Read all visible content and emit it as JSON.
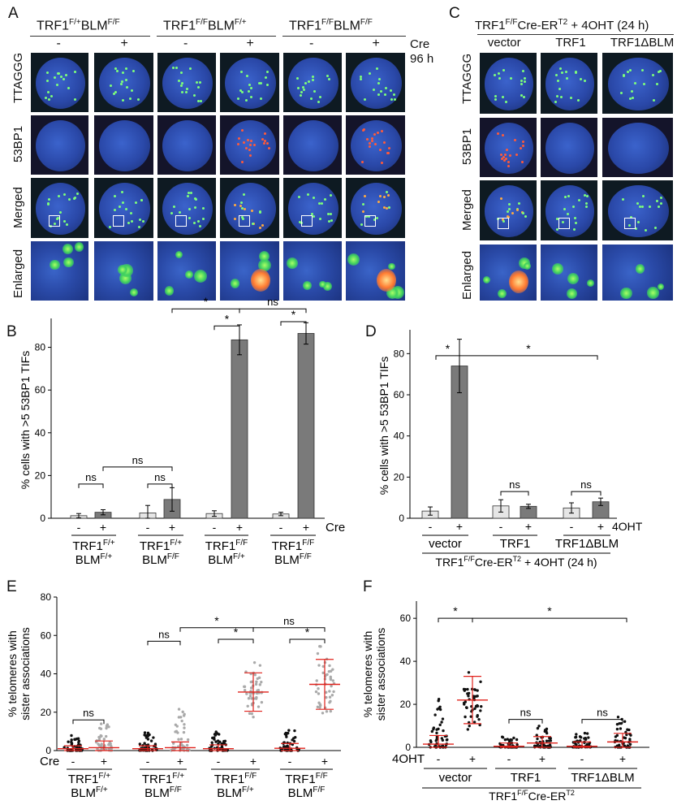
{
  "panelA": {
    "letter": "A",
    "groups": [
      "TRF1F/+BLMF/F",
      "TRF1F/FBLMF/+",
      "TRF1F/FBLMF/F"
    ],
    "group_parts": [
      [
        "TRF1",
        "F/+",
        "BLM",
        "F/F"
      ],
      [
        "TRF1",
        "F/F",
        "BLM",
        "F/+"
      ],
      [
        "TRF1",
        "F/F",
        "BLM",
        "F/F"
      ]
    ],
    "signs": [
      "-",
      "+",
      "-",
      "+",
      "-",
      "+"
    ],
    "cre": "Cre",
    "cre_time": "96 h",
    "rows": [
      "TTAGGG",
      "53BP1",
      "Merged",
      "Enlarged"
    ]
  },
  "panelC": {
    "letter": "C",
    "header_parts": [
      "TRF1",
      "F/F",
      "Cre-ER",
      "T2",
      "+ 4OHT (24 h)"
    ],
    "columns": [
      "vector",
      "TRF1",
      "TRF1ΔBLM"
    ],
    "rows": [
      "TTAGGG",
      "53BP1",
      "Merged",
      "Enlarged"
    ]
  },
  "panelB": {
    "letter": "B",
    "ylabel": "% cells with >5 53BP1 TIFs",
    "signs": [
      "-",
      "+",
      "-",
      "+",
      "-",
      "+",
      "-",
      "+"
    ],
    "cre": "Cre",
    "groups": [
      [
        "TRF1",
        "F/+",
        "BLM",
        "F/+"
      ],
      [
        "TRF1",
        "F/+",
        "BLM",
        "F/F"
      ],
      [
        "TRF1",
        "F/F",
        "BLM",
        "F/+"
      ],
      [
        "TRF1",
        "F/F",
        "BLM",
        "F/F"
      ]
    ],
    "sig": [
      "ns",
      "ns",
      "ns",
      "*",
      "*",
      "ns",
      "*"
    ]
  },
  "panelD": {
    "letter": "D",
    "ylabel": "% cells with >5 53BP1 TIFs",
    "signs": [
      "-",
      "+",
      "-",
      "+",
      "-",
      "+"
    ],
    "treat": "4OHT",
    "groups": [
      "vector",
      "TRF1",
      "TRF1ΔBLM"
    ],
    "footer_parts": [
      "TRF1",
      "F/F",
      "Cre-ER",
      "T2",
      "+ 4OHT (24 h)"
    ],
    "sig": [
      "*",
      "*",
      "ns",
      "ns"
    ]
  },
  "panelE": {
    "letter": "E",
    "ylabel": [
      "% telomeres with",
      "sister associations"
    ],
    "signs": [
      "-",
      "+",
      "-",
      "+",
      "-",
      "+",
      "-",
      "+"
    ],
    "cre": "Cre",
    "groups": [
      [
        "TRF1",
        "F/+",
        "BLM",
        "F/+"
      ],
      [
        "TRF1",
        "F/+",
        "BLM",
        "F/F"
      ],
      [
        "TRF1",
        "F/F",
        "BLM",
        "F/+"
      ],
      [
        "TRF1",
        "F/F",
        "BLM",
        "F/F"
      ]
    ],
    "sig": [
      "ns",
      "ns",
      "*",
      "ns",
      "*",
      "*"
    ]
  },
  "panelF": {
    "letter": "F",
    "ylabel": [
      "% telomeres with",
      "sister associations"
    ],
    "signs": [
      "-",
      "+",
      "-",
      "+",
      "-",
      "+"
    ],
    "treat": "4OHT",
    "groups": [
      "vector",
      "TRF1",
      "TRF1ΔBLM"
    ],
    "footer_parts": [
      "TRF1",
      "F/F",
      "Cre-ER",
      "T2"
    ],
    "sig": [
      "*",
      "*",
      "ns",
      "ns"
    ]
  },
  "colors": {
    "light_bar": "#e6e6e6",
    "dark_bar": "#7a7a7a",
    "red": "#e0201a",
    "nucleus": "#2b4fb8"
  },
  "chart_data": [
    {
      "type": "bar",
      "categories": [
        "TRF1F/+BLMF/+ -",
        "TRF1F/+BLMF/+ +",
        "TRF1F/+BLMF/F -",
        "TRF1F/+BLMF/F +",
        "TRF1F/FBLMF/+ -",
        "TRF1F/FBLMF/+ +",
        "TRF1F/FBLMF/F -",
        "TRF1F/FBLMF/F +"
      ],
      "values": [
        1.2,
        2.8,
        2.5,
        8.8,
        2.2,
        83.5,
        2.0,
        86.5
      ],
      "errors": [
        1.0,
        1.2,
        3.5,
        5.5,
        1.3,
        7.0,
        0.8,
        5.0
      ],
      "yticks": [
        0,
        20,
        40,
        60,
        80
      ],
      "ylim": [
        0,
        92
      ]
    },
    {
      "type": "bar",
      "categories": [
        "vector -",
        "vector +",
        "TRF1 -",
        "TRF1 +",
        "TRF1ΔBLM -",
        "TRF1ΔBLM +"
      ],
      "values": [
        3.5,
        74.0,
        6.0,
        5.8,
        5.0,
        8.0
      ],
      "errors": [
        2.0,
        13.0,
        3.0,
        1.0,
        2.5,
        1.8
      ],
      "yticks": [
        0,
        20,
        40,
        60,
        80
      ],
      "ylim": [
        0,
        90
      ]
    },
    {
      "type": "scatter",
      "categories": [
        "TRF1F/+BLMF/+ -",
        "TRF1F/+BLMF/+ +",
        "TRF1F/+BLMF/F -",
        "TRF1F/+BLMF/F +",
        "TRF1F/FBLMF/+ -",
        "TRF1F/FBLMF/+ +",
        "TRF1F/FBLMF/F -",
        "TRF1F/FBLMF/F +"
      ],
      "mean": [
        1.0,
        1.5,
        1.0,
        1.5,
        1.0,
        30.5,
        1.2,
        34.5
      ],
      "sd": [
        1.5,
        3.5,
        1.5,
        3.0,
        2.0,
        10.0,
        2.5,
        13.0
      ],
      "max": [
        8,
        14,
        10,
        22,
        11,
        58,
        11,
        70
      ],
      "yticks": [
        0,
        20,
        40,
        60,
        80
      ],
      "ylim": [
        0,
        80
      ]
    },
    {
      "type": "scatter",
      "categories": [
        "vector -",
        "vector +",
        "TRF1 -",
        "TRF1 +",
        "TRF1ΔBLM -",
        "TRF1ΔBLM +"
      ],
      "mean": [
        1.5,
        22.0,
        0.5,
        2.0,
        0.5,
        2.5
      ],
      "sd": [
        4.0,
        11.0,
        1.5,
        3.0,
        2.0,
        4.0
      ],
      "max": [
        24,
        58,
        5,
        10,
        7,
        15
      ],
      "yticks": [
        0,
        20,
        40,
        60
      ],
      "ylim": [
        0,
        68
      ]
    }
  ]
}
